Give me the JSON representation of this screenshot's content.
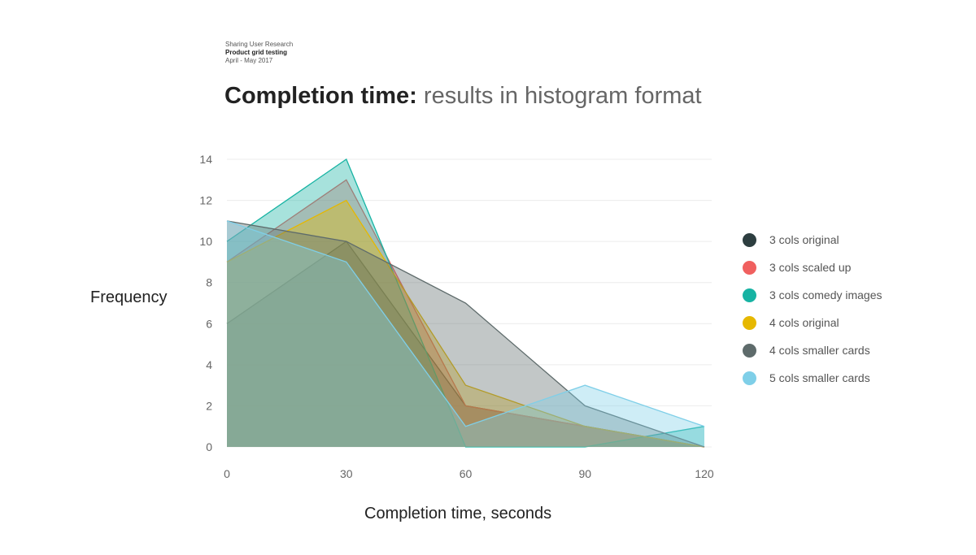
{
  "header": {
    "line1": "Sharing User Research",
    "line2": "Product grid testing",
    "line3": "April - May 2017"
  },
  "title": {
    "strong": "Completion time:",
    "light": "results in histogram format"
  },
  "chart_data": {
    "type": "area",
    "x": [
      0,
      30,
      60,
      90,
      120
    ],
    "xlabel": "Completion time, seconds",
    "ylabel": "Frequency",
    "ylim": [
      0,
      14
    ],
    "yticks": [
      0,
      2,
      4,
      6,
      8,
      10,
      12,
      14
    ],
    "grid": true,
    "legend_position": "right",
    "series": [
      {
        "name": "3 cols original",
        "color": "#2d3e40",
        "values": [
          6,
          10,
          2,
          1,
          0
        ]
      },
      {
        "name": "3 cols scaled up",
        "color": "#f0605f",
        "values": [
          9,
          13,
          2,
          1,
          0
        ]
      },
      {
        "name": "3 cols comedy images",
        "color": "#17b3a3",
        "values": [
          10,
          14,
          0,
          0,
          1
        ]
      },
      {
        "name": "4 cols original",
        "color": "#e6b800",
        "values": [
          9,
          12,
          3,
          1,
          0
        ]
      },
      {
        "name": "4 cols smaller cards",
        "color": "#5e6b6b",
        "values": [
          11,
          10,
          7,
          2,
          0
        ]
      },
      {
        "name": "5 cols smaller cards",
        "color": "#7fcfe8",
        "values": [
          11,
          9,
          1,
          3,
          1
        ]
      }
    ]
  }
}
